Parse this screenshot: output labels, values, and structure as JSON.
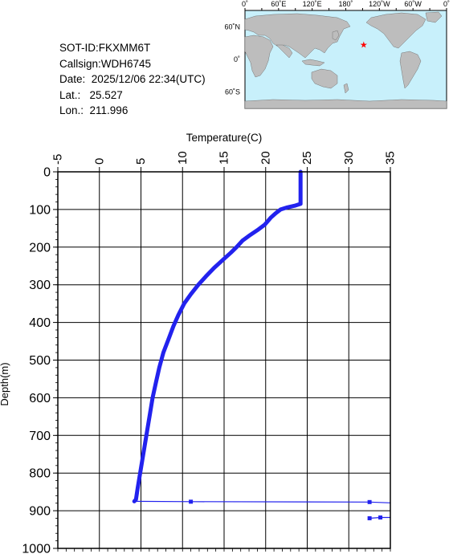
{
  "info": {
    "sot_id": "SOT-ID:FKXMM6T",
    "callsign": "Callsign:WDH6745",
    "date": "Date:  2025/12/06 22:34(UTC)",
    "lat": "Lat.:   25.527",
    "lon": "Lon.:  211.996"
  },
  "map": {
    "lon_labels": [
      "0˚",
      "60˚E",
      "120˚E",
      "180˚",
      "120˚W",
      "60˚W",
      "0˚"
    ],
    "lat_labels": [
      "60˚N",
      "0˚",
      "60˚S"
    ],
    "ocean_color": "#c8f0fb",
    "land_color": "#bdbdbd",
    "marker": {
      "lat": 25.527,
      "lon": 211.996,
      "symbol": "★",
      "color": "#ff0000"
    }
  },
  "chart_data": {
    "type": "line",
    "xlabel": "Temperature(C)",
    "ylabel": "Depth(m)",
    "xlim": [
      -5,
      35
    ],
    "ylim": [
      1000,
      0
    ],
    "x_ticks": [
      -5,
      0,
      5,
      10,
      15,
      20,
      25,
      30,
      35
    ],
    "y_ticks": [
      0,
      100,
      200,
      300,
      400,
      500,
      600,
      700,
      800,
      900,
      1000
    ],
    "grid": true,
    "line_color": "#2222ee",
    "series": [
      {
        "points": [
          [
            24.2,
            0
          ],
          [
            24.2,
            20
          ],
          [
            24.2,
            40
          ],
          [
            24.2,
            60
          ],
          [
            24.2,
            85
          ],
          [
            23.5,
            90
          ],
          [
            22.5,
            95
          ],
          [
            21.8,
            100
          ],
          [
            21.2,
            110
          ],
          [
            20.6,
            122
          ],
          [
            19.9,
            140
          ],
          [
            19.0,
            155
          ],
          [
            18.0,
            170
          ],
          [
            17.2,
            183
          ],
          [
            16.5,
            200
          ],
          [
            15.8,
            215
          ],
          [
            14.8,
            235
          ],
          [
            13.8,
            255
          ],
          [
            12.8,
            278
          ],
          [
            11.9,
            300
          ],
          [
            11.0,
            325
          ],
          [
            10.2,
            350
          ],
          [
            9.5,
            380
          ],
          [
            8.9,
            410
          ],
          [
            8.3,
            445
          ],
          [
            7.7,
            480
          ],
          [
            7.2,
            520
          ],
          [
            6.8,
            560
          ],
          [
            6.4,
            600
          ],
          [
            6.1,
            640
          ],
          [
            5.8,
            680
          ],
          [
            5.5,
            720
          ],
          [
            5.2,
            760
          ],
          [
            4.9,
            800
          ],
          [
            4.6,
            840
          ],
          [
            4.4,
            870
          ],
          [
            4.2,
            875
          ]
        ],
        "style": "thick"
      },
      {
        "points": [
          [
            4.2,
            875
          ],
          [
            11.0,
            876
          ],
          [
            32.5,
            877
          ],
          [
            35.0,
            879
          ]
        ],
        "style": "thin",
        "markers": [
          [
            11.0,
            876
          ],
          [
            32.5,
            877
          ]
        ]
      },
      {
        "points": [
          [
            32.5,
            920
          ],
          [
            33.8,
            918
          ],
          [
            35.0,
            918
          ]
        ],
        "style": "thin",
        "markers": [
          [
            32.5,
            920
          ],
          [
            33.8,
            918
          ]
        ]
      }
    ]
  }
}
